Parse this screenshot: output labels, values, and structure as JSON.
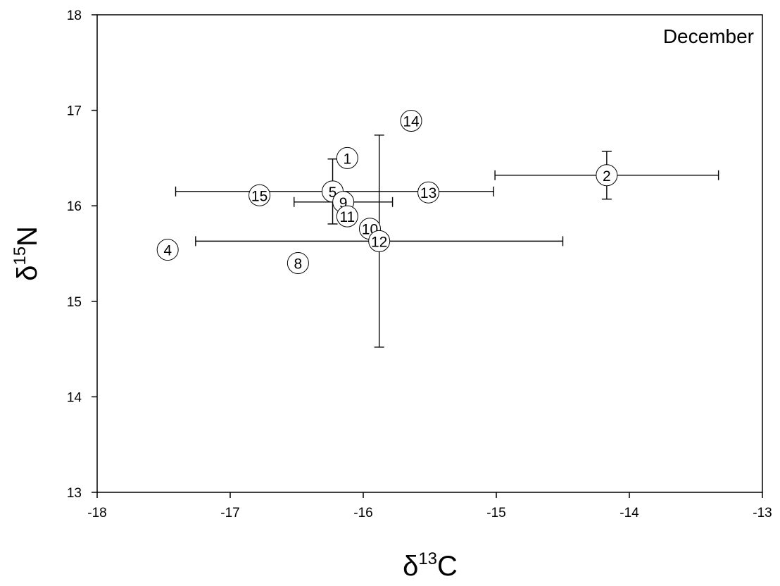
{
  "chart_data": {
    "type": "scatter",
    "annotation": "December",
    "xlabel": "δ13C",
    "ylabel": "δ15N",
    "xlim": [
      -18,
      -13
    ],
    "ylim": [
      13,
      18
    ],
    "xticks": [
      "-18",
      "-17",
      "-16",
      "-15",
      "-14",
      "-13"
    ],
    "yticks": [
      "13",
      "14",
      "15",
      "16",
      "17",
      "18"
    ],
    "grid": false,
    "points": [
      {
        "label": "1",
        "x": -16.12,
        "y": 16.5
      },
      {
        "label": "2",
        "x": -14.17,
        "y": 16.32,
        "xerr": 0.84,
        "yerr": 0.25
      },
      {
        "label": "4",
        "x": -17.47,
        "y": 15.54
      },
      {
        "label": "5",
        "x": -16.23,
        "y": 16.15,
        "yerr": 0.34
      },
      {
        "label": "8",
        "x": -16.49,
        "y": 15.4
      },
      {
        "label": "9",
        "x": -16.15,
        "y": 16.04,
        "xerr": 0.37
      },
      {
        "label": "10",
        "x": -15.95,
        "y": 15.76
      },
      {
        "label": "11",
        "x": -16.12,
        "y": 15.89
      },
      {
        "label": "12",
        "x": -15.88,
        "y": 15.63,
        "xerr": 1.38,
        "yerr": 1.11
      },
      {
        "label": "13",
        "x": -15.51,
        "y": 16.14
      },
      {
        "label": "14",
        "x": -15.64,
        "y": 16.89
      },
      {
        "label": "15",
        "x": -16.78,
        "y": 16.11
      }
    ],
    "hbars": [
      {
        "y": 16.15,
        "x1": -17.41,
        "x2": -15.02
      }
    ]
  }
}
